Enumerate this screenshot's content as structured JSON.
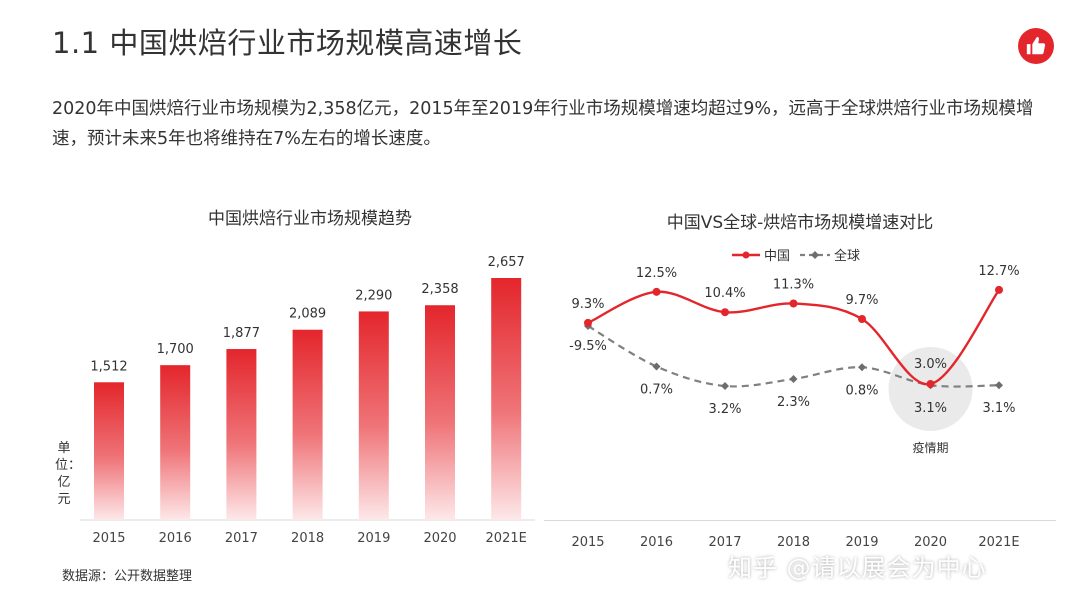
{
  "page": {
    "title": "1.1 中国烘焙行业市场规模高速增长",
    "intro": "2020年中国烘焙行业市场规模为2,358亿元，2015年至2019年行业市场规模增速均超过9%，远高于全球烘焙行业市场规模增速，预计未来5年也将维持在7%左右的增长速度。",
    "unit_label": "单位：亿元",
    "source": "数据源：公开数据整理",
    "watermark": "知乎 @请以展会为中心",
    "logo_icon": "thumbs-up-icon",
    "accent_color": "#e3262c"
  },
  "chart_data": [
    {
      "type": "bar",
      "title": "中国烘焙行业市场规模趋势",
      "categories": [
        "2015",
        "2016",
        "2017",
        "2018",
        "2019",
        "2020",
        "2021E"
      ],
      "values": [
        1512,
        1700,
        1877,
        2089,
        2290,
        2358,
        2657
      ],
      "value_labels": [
        "1,512",
        "1,700",
        "1,877",
        "2,089",
        "2,290",
        "2,358",
        "2,657"
      ],
      "ylabel": "单位：亿元",
      "ylim": [
        0,
        2700
      ],
      "color": "#e3262c",
      "grid": false
    },
    {
      "type": "line",
      "title": "中国VS全球-烘焙市场规模增速对比",
      "categories": [
        "2015",
        "2016",
        "2017",
        "2018",
        "2019",
        "2020",
        "2021E"
      ],
      "legend_position": "top",
      "series": [
        {
          "name": "中国",
          "values": [
            9.3,
            12.5,
            10.4,
            11.3,
            9.7,
            3.0,
            12.7
          ],
          "labels": [
            "9.3%",
            "12.5%",
            "10.4%",
            "11.3%",
            "9.7%",
            "3.0%",
            "12.7%"
          ],
          "color": "#e3262c",
          "style": "solid"
        },
        {
          "name": "全球",
          "values": [
            -9.5,
            0.7,
            3.2,
            2.3,
            0.8,
            3.1,
            3.1
          ],
          "labels": [
            "-9.5%",
            "0.7%",
            "3.2%",
            "2.3%",
            "0.8%",
            "3.1%",
            "3.1%"
          ],
          "color": "#808080",
          "style": "dashed"
        }
      ],
      "ylim": [
        -10,
        14
      ],
      "annotation": "疫情期",
      "grid": false
    }
  ]
}
